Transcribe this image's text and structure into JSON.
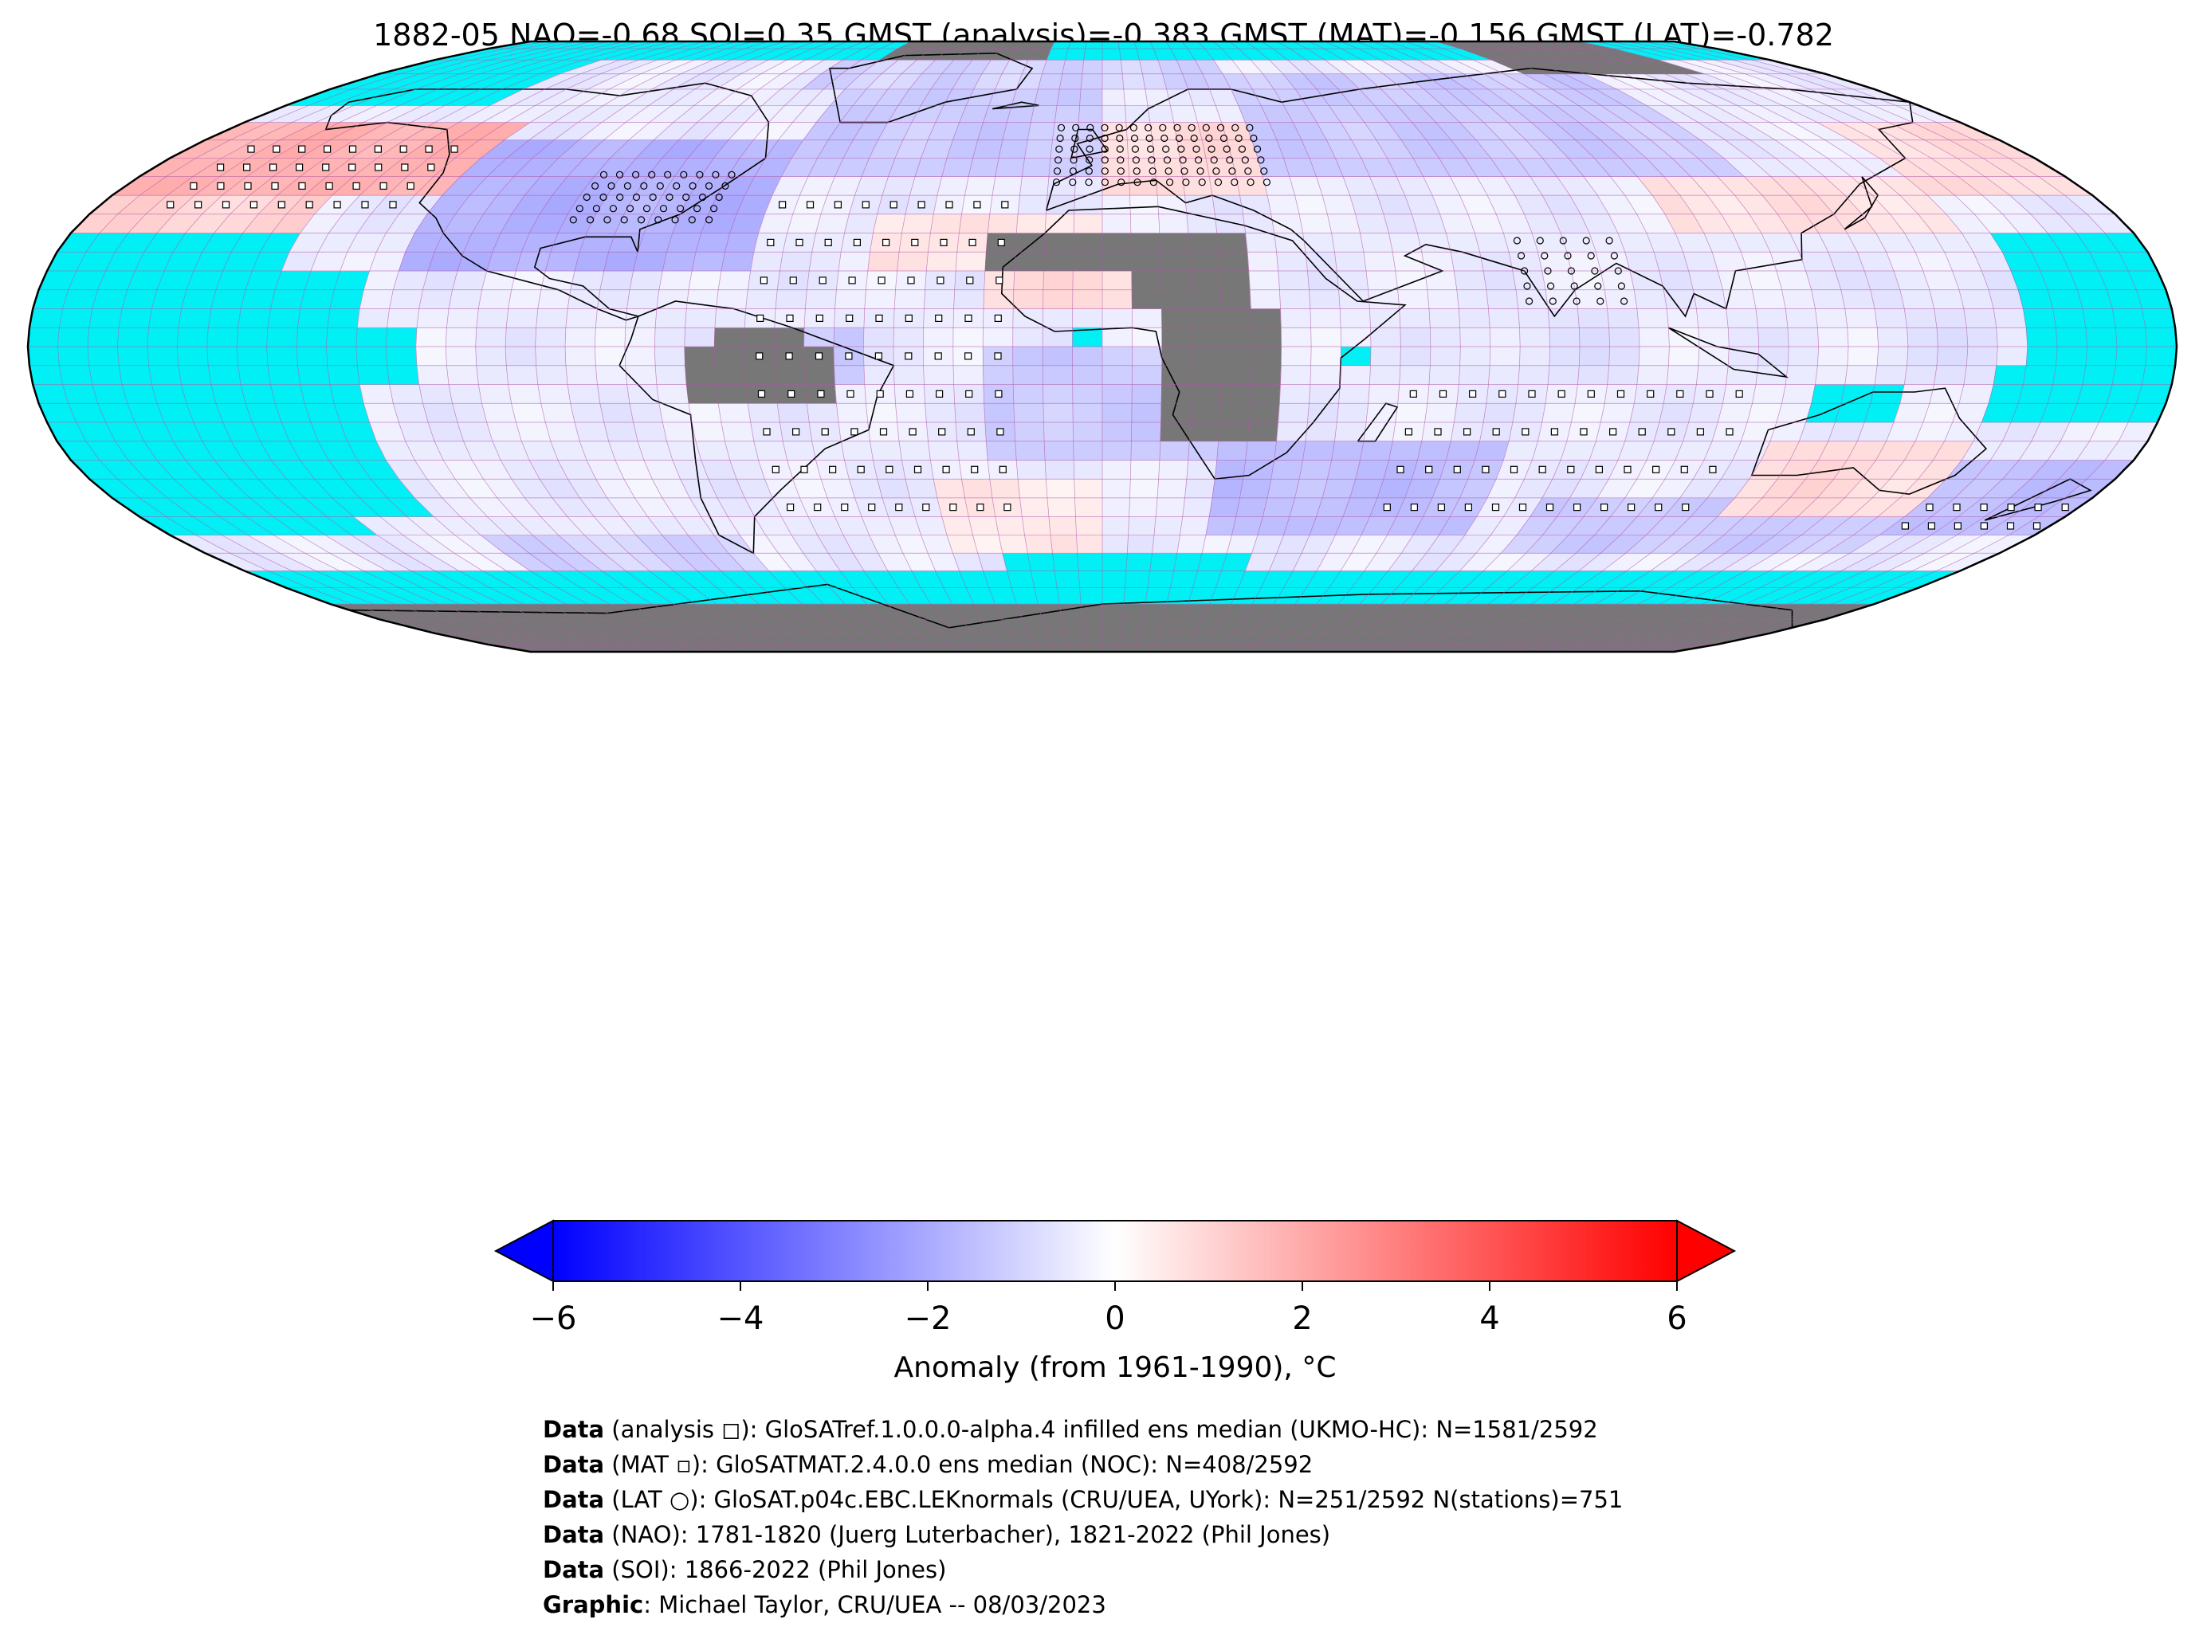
{
  "title": "1882-05 NAO=-0.68 SOI=0.35 GMST (analysis)=-0.383 GMST (MAT)=-0.156 GMST (LAT)=-0.782",
  "colors": {
    "missing_ocean": "#00f0f5",
    "missing_land": "#777777",
    "grid_line": "#b05aa8",
    "coastline": "#000000",
    "cold": "#0000ff",
    "neutral": "#ffffff",
    "warm": "#ff0000"
  },
  "legend": {
    "label": "Anomaly (from 1961-1990), °C",
    "ticks": [
      "−6",
      "−4",
      "−2",
      "0",
      "2",
      "4",
      "6"
    ],
    "range": [
      -6,
      6
    ],
    "extend": "both"
  },
  "grid": {
    "cell_degrees": 5,
    "nlon": 72,
    "nlat": 36
  },
  "chart_data": {
    "type": "heatmap",
    "title": "1882-05 NAO=-0.68 SOI=0.35 GMST (analysis)=-0.383 GMST (MAT)=-0.156 GMST (LAT)=-0.782",
    "projection": "Robinson",
    "variable": "Anomaly (from 1961-1990), °C",
    "vmin": -6,
    "vmax": 6,
    "indices": {
      "NAO": -0.68,
      "SOI": 0.35,
      "GMST_analysis": -0.383,
      "GMST_MAT": -0.156,
      "GMST_LAT": -0.782
    },
    "coverage": {
      "analysis": "1581/2592",
      "MAT": "408/2592",
      "LAT": "251/2592",
      "stations": 751
    },
    "regions": [
      {
        "lon": [
          -180,
          -120
        ],
        "lat": [
          40,
          60
        ],
        "anomaly": 1.8
      },
      {
        "lon": [
          -180,
          -140
        ],
        "lat": [
          30,
          40
        ],
        "anomaly": 1.0
      },
      {
        "lon": [
          -100,
          -60
        ],
        "lat": [
          30,
          50
        ],
        "anomaly": -3.0
      },
      {
        "lon": [
          -120,
          -60
        ],
        "lat": [
          20,
          55
        ],
        "anomaly": -1.8
      },
      {
        "lon": [
          -60,
          0
        ],
        "lat": [
          45,
          75
        ],
        "anomaly": -1.2
      },
      {
        "lon": [
          -70,
          30
        ],
        "lat": [
          70,
          85
        ],
        "anomaly": -1.0
      },
      {
        "lon": [
          0,
          30
        ],
        "lat": [
          40,
          60
        ],
        "anomaly": 0.8
      },
      {
        "lon": [
          30,
          120
        ],
        "lat": [
          45,
          75
        ],
        "anomaly": -1.2
      },
      {
        "lon": [
          100,
          150
        ],
        "lat": [
          30,
          45
        ],
        "anomaly": 0.7
      },
      {
        "lon": [
          150,
          180
        ],
        "lat": [
          40,
          60
        ],
        "anomaly": 0.8
      },
      {
        "lon": [
          -20,
          10
        ],
        "lat": [
          10,
          25
        ],
        "anomaly": 0.8
      },
      {
        "lon": [
          -40,
          0
        ],
        "lat": [
          20,
          35
        ],
        "anomaly": 0.6
      },
      {
        "lon": [
          -60,
          -40
        ],
        "lat": [
          -10,
          5
        ],
        "anomaly": -1.2
      },
      {
        "lon": [
          -20,
          20
        ],
        "lat": [
          -30,
          0
        ],
        "anomaly": -1.2
      },
      {
        "lon": [
          20,
          70
        ],
        "lat": [
          -50,
          -25
        ],
        "anomaly": -1.5
      },
      {
        "lon": [
          80,
          150
        ],
        "lat": [
          -55,
          -40
        ],
        "anomaly": -1.2
      },
      {
        "lon": [
          115,
          150
        ],
        "lat": [
          -45,
          -25
        ],
        "anomaly": 0.8
      },
      {
        "lon": [
          150,
          180
        ],
        "lat": [
          -50,
          -30
        ],
        "anomaly": -1.5
      },
      {
        "lon": [
          -120,
          -70
        ],
        "lat": [
          -65,
          -50
        ],
        "anomaly": -1.0
      },
      {
        "lon": [
          -30,
          0
        ],
        "lat": [
          -55,
          -35
        ],
        "anomaly": 0.5
      },
      {
        "lon": [
          60,
          90
        ],
        "lat": [
          -10,
          10
        ],
        "anomaly": -0.6
      },
      {
        "lon": [
          130,
          180
        ],
        "lat": [
          -10,
          20
        ],
        "anomaly": -0.6
      }
    ],
    "missing_land_boxes": [
      {
        "lon": [
          -20,
          25
        ],
        "lat": [
          20,
          30
        ]
      },
      {
        "lon": [
          5,
          25
        ],
        "lat": [
          10,
          20
        ]
      },
      {
        "lon": [
          10,
          30
        ],
        "lat": [
          -25,
          10
        ]
      },
      {
        "lon": [
          -70,
          -45
        ],
        "lat": [
          -15,
          0
        ]
      },
      {
        "lon": [
          -65,
          -50
        ],
        "lat": [
          0,
          5
        ]
      },
      {
        "lon": [
          -180,
          180
        ],
        "lat": [
          -90,
          -70
        ]
      },
      {
        "lon": [
          -60,
          -15
        ],
        "lat": [
          80,
          90
        ]
      },
      {
        "lon": [
          105,
          150
        ],
        "lat": [
          75,
          90
        ]
      }
    ],
    "missing_ocean_boxes": [
      {
        "lon": [
          -180,
          -140
        ],
        "lat": [
          -50,
          30
        ]
      },
      {
        "lon": [
          -140,
          -125
        ],
        "lat": [
          -45,
          20
        ]
      },
      {
        "lon": [
          -125,
          -115
        ],
        "lat": [
          -10,
          5
        ]
      },
      {
        "lon": [
          -180,
          180
        ],
        "lat": [
          -70,
          -60
        ]
      },
      {
        "lon": [
          -20,
          30
        ],
        "lat": [
          -60,
          -55
        ]
      },
      {
        "lon": [
          155,
          180
        ],
        "lat": [
          -5,
          30
        ]
      },
      {
        "lon": [
          150,
          180
        ],
        "lat": [
          -20,
          -5
        ]
      },
      {
        "lon": [
          120,
          135
        ],
        "lat": [
          -20,
          -10
        ]
      },
      {
        "lon": [
          -180,
          -135
        ],
        "lat": [
          65,
          90
        ]
      },
      {
        "lon": [
          -5,
          0
        ],
        "lat": [
          0,
          5
        ]
      },
      {
        "lon": [
          40,
          45
        ],
        "lat": [
          -5,
          0
        ]
      }
    ]
  },
  "credits": [
    {
      "bold": "Data",
      "text": " (analysis ◻): GloSATref.1.0.0.0-alpha.4 infilled ens median (UKMO-HC): N=1581/2592"
    },
    {
      "bold": "Data",
      "text": " (MAT ▫): GloSATMAT.2.4.0.0 ens median (NOC): N=408/2592"
    },
    {
      "bold": "Data",
      "text": " (LAT ○): GloSAT.p04c.EBC.LEKnormals (CRU/UEA, UYork): N=251/2592 N(stations)=751"
    },
    {
      "bold": "Data",
      "text": " (NAO): 1781-1820 (Juerg Luterbacher), 1821-2022 (Phil Jones)"
    },
    {
      "bold": "Data",
      "text": " (SOI): 1866-2022 (Phil Jones)"
    },
    {
      "bold": "Graphic",
      "text": ": Michael Taylor, CRU/UEA -- 08/03/2023"
    }
  ]
}
